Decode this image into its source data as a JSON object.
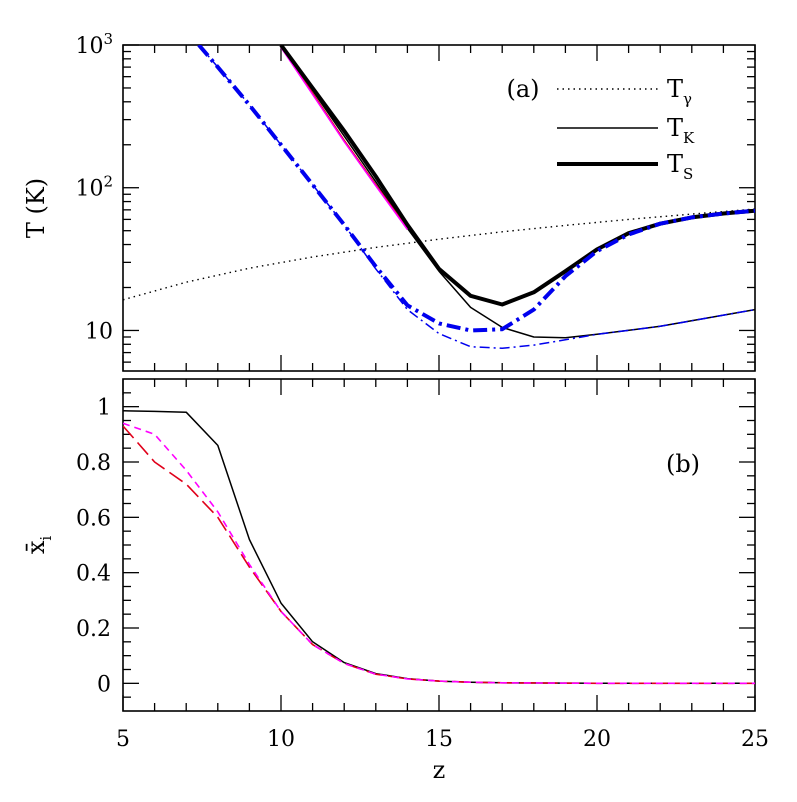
{
  "chart_data": [
    {
      "type": "line",
      "panel_label": "(a)",
      "xlabel": "",
      "ylabel": "T (K)",
      "xlim": [
        5,
        25
      ],
      "ylim": [
        5.2,
        1000
      ],
      "yscale": "log",
      "yticks": [
        {
          "value": 10,
          "label": "10"
        },
        {
          "value": 100,
          "label": "10",
          "sup": "2"
        },
        {
          "value": 1000,
          "label": "10",
          "sup": "3"
        }
      ],
      "legend": [
        {
          "symbol": "T",
          "subscript": "γ",
          "style": "dotted"
        },
        {
          "symbol": "T",
          "subscript": "K",
          "style": "thin"
        },
        {
          "symbol": "T",
          "subscript": "S",
          "style": "thick"
        }
      ],
      "legend_position": "top-right",
      "series": [
        {
          "quantity": "T_gamma",
          "style": "dotted",
          "color": "#000000",
          "x": [
            5,
            7,
            9,
            11,
            13,
            15,
            17,
            19,
            21,
            23,
            25
          ],
          "y": [
            16.4,
            21.8,
            27.3,
            32.7,
            38.2,
            43.6,
            49.1,
            54.5,
            60.0,
            65.4,
            70.9
          ]
        },
        {
          "quantity": "T_K (black)",
          "style": "thin",
          "color": "#000000",
          "x": [
            10,
            11,
            12,
            13,
            14,
            15,
            16,
            17,
            18,
            19,
            20,
            22,
            25
          ],
          "y": [
            1000,
            480,
            230,
            110,
            52,
            26,
            14.5,
            10.5,
            9.0,
            8.9,
            9.4,
            10.7,
            14.0
          ]
        },
        {
          "quantity": "T_K (red)",
          "style": "thin",
          "color": "#e0001a",
          "x": [
            10,
            11,
            12,
            13,
            14
          ],
          "y": [
            1000,
            460,
            215,
            105,
            52
          ]
        },
        {
          "quantity": "T_K (magenta)",
          "style": "thin",
          "color": "#ff00ff",
          "x": [
            10,
            11,
            12,
            13,
            14
          ],
          "y": [
            960,
            450,
            210,
            103,
            51
          ]
        },
        {
          "quantity": "T_S (black)",
          "style": "thick",
          "color": "#000000",
          "x": [
            10,
            11,
            12,
            13,
            14,
            15,
            16,
            17,
            18,
            19,
            20,
            21,
            22,
            23,
            24,
            25
          ],
          "y": [
            1000,
            500,
            250,
            120,
            55,
            27,
            17.5,
            15.2,
            18.5,
            26.0,
            37.0,
            48.0,
            56.0,
            62.0,
            66.0,
            69.0
          ]
        },
        {
          "quantity": "T_K (blue)",
          "style": "dashdot-thin",
          "color": "#0000ee",
          "x": [
            7.4,
            8,
            9,
            10,
            11,
            12,
            13,
            14,
            15,
            16,
            17,
            18,
            19,
            20,
            22,
            25
          ],
          "y": [
            1000,
            700,
            380,
            200,
            105,
            55,
            27,
            14.0,
            9.5,
            7.7,
            7.5,
            7.9,
            8.6,
            9.4,
            10.7,
            14.0
          ]
        },
        {
          "quantity": "T_S (blue)",
          "style": "dashdot-thick",
          "color": "#0000ee",
          "x": [
            7.4,
            8,
            9,
            10,
            11,
            12,
            13,
            14,
            15,
            16,
            17,
            18,
            19,
            20,
            21,
            22,
            23,
            24,
            25
          ],
          "y": [
            1000,
            700,
            380,
            200,
            105,
            55,
            28,
            15.0,
            11.2,
            10.0,
            10.2,
            14.0,
            24.0,
            36.0,
            47.0,
            56.0,
            62.0,
            66.0,
            69.0
          ]
        }
      ]
    },
    {
      "type": "line",
      "panel_label": "(b)",
      "xlabel": "z",
      "ylabel": "x̄",
      "ylabel_subscript": "i",
      "xlim": [
        5,
        25
      ],
      "ylim": [
        -0.1,
        1.1
      ],
      "xticks": [
        "5",
        "10",
        "15",
        "20",
        "25"
      ],
      "yticks": [
        "0",
        "0.2",
        "0.4",
        "0.6",
        "0.8",
        "1"
      ],
      "series": [
        {
          "style": "solid",
          "color": "#000000",
          "x": [
            5,
            6,
            7,
            8,
            9,
            10,
            11,
            12,
            13,
            14,
            15,
            16,
            17,
            20,
            25
          ],
          "y": [
            0.985,
            0.983,
            0.98,
            0.86,
            0.52,
            0.29,
            0.15,
            0.075,
            0.035,
            0.017,
            0.008,
            0.004,
            0.002,
            0.0,
            0.0
          ]
        },
        {
          "style": "long-dash",
          "color": "#e0001a",
          "x": [
            5,
            6,
            7,
            8,
            9,
            10,
            11,
            12,
            13,
            14,
            15,
            16,
            17,
            20,
            25
          ],
          "y": [
            0.93,
            0.8,
            0.72,
            0.6,
            0.42,
            0.26,
            0.14,
            0.072,
            0.033,
            0.016,
            0.008,
            0.004,
            0.002,
            0.0,
            0.0
          ]
        },
        {
          "style": "short-dash",
          "color": "#ff00ff",
          "x": [
            5,
            6,
            7,
            8,
            9,
            10,
            11,
            12,
            13,
            14,
            15,
            16,
            17,
            20,
            25
          ],
          "y": [
            0.94,
            0.9,
            0.77,
            0.62,
            0.43,
            0.26,
            0.14,
            0.072,
            0.033,
            0.016,
            0.008,
            0.004,
            0.002,
            0.0,
            0.0
          ]
        }
      ]
    }
  ]
}
